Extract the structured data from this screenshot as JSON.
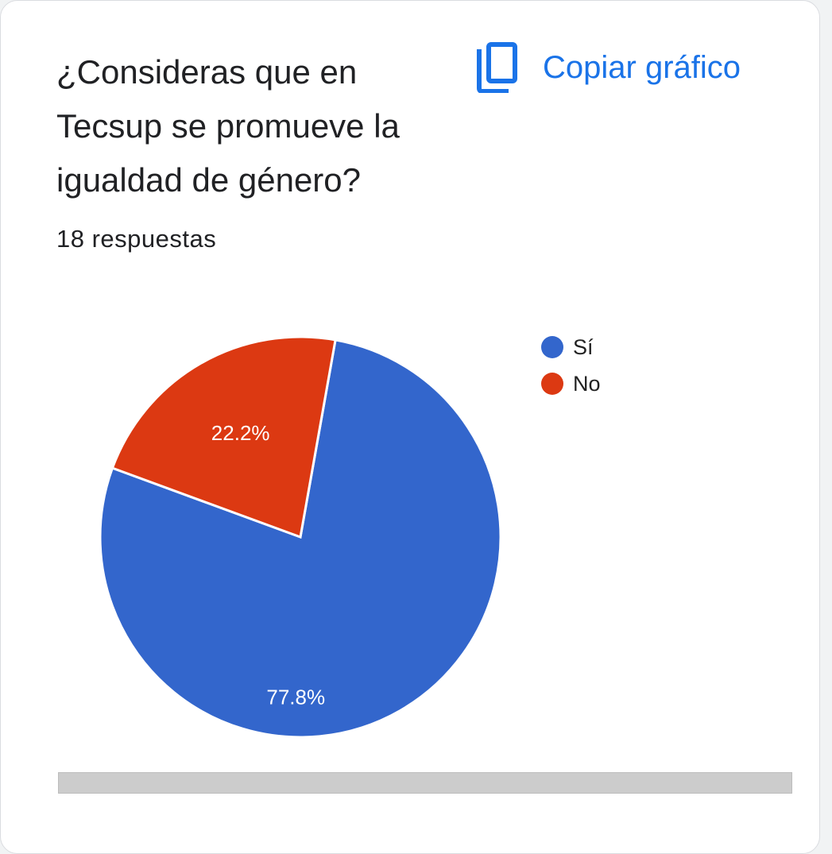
{
  "card": {
    "title": "¿Consideras que en Tecsup se promueve la igualdad de género?",
    "copy_label": "Copiar gráfico",
    "copy_icon": "copy-icon",
    "responses": "18 respuestas"
  },
  "chart_data": {
    "type": "pie",
    "categories": [
      "Sí",
      "No"
    ],
    "values": [
      77.8,
      22.2
    ],
    "labels": [
      "77.8%",
      "22.2%"
    ],
    "colors": [
      "#3366cc",
      "#dc3912"
    ],
    "legend_position": "right",
    "legend": [
      "Sí",
      "No"
    ]
  }
}
